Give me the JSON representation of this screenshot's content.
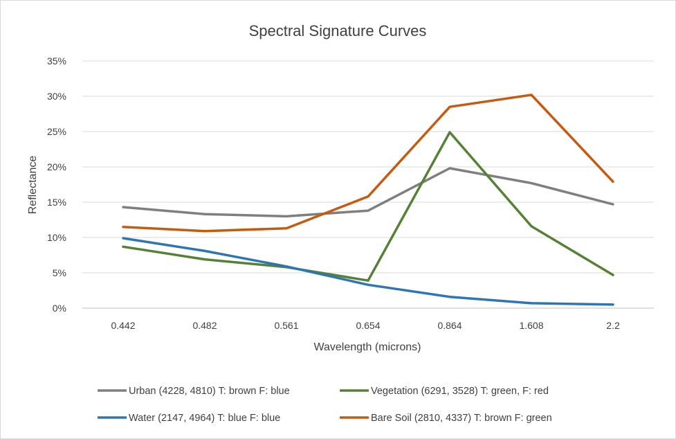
{
  "chart_data": {
    "type": "line",
    "title": "Spectral Signature Curves",
    "xlabel": "Wavelength (microns)",
    "ylabel": "Reflectance",
    "categories": [
      "0.442",
      "0.482",
      "0.561",
      "0.654",
      "0.864",
      "1.608",
      "2.2"
    ],
    "ylim": [
      0,
      35
    ],
    "ytick_step": 5,
    "ytick_suffix": "%",
    "grid": "horizontal",
    "legend_position": "bottom",
    "series": [
      {
        "name": "Urban (4228, 4810) T: brown F: blue",
        "color": "#7f7f7f",
        "values": [
          14.3,
          13.3,
          13.0,
          13.8,
          19.8,
          17.7,
          14.7
        ]
      },
      {
        "name": "Vegetation (6291, 3528) T: green, F: red",
        "color": "#548235",
        "values": [
          8.7,
          6.9,
          5.8,
          3.9,
          24.9,
          11.6,
          4.7
        ]
      },
      {
        "name": "Water (2147, 4964) T: blue F: blue",
        "color": "#2e75b6",
        "values": [
          9.9,
          8.1,
          5.9,
          3.3,
          1.6,
          0.7,
          0.5
        ]
      },
      {
        "name": "Bare Soil (2810, 4337) T: brown F: green",
        "color": "#c55a11",
        "values": [
          11.5,
          10.9,
          11.3,
          15.8,
          28.5,
          30.2,
          17.9
        ]
      }
    ]
  }
}
